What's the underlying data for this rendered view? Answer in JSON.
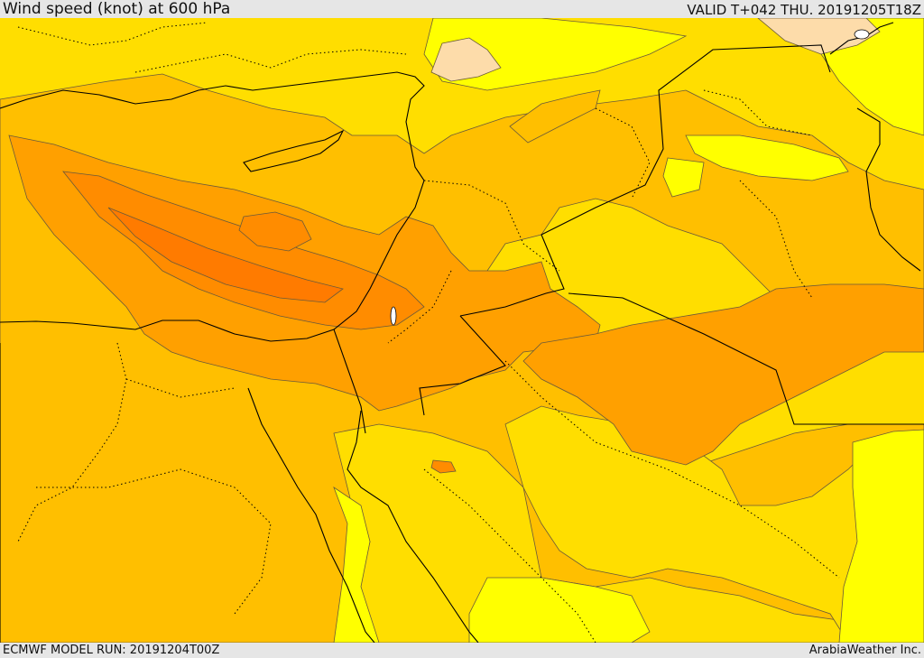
{
  "header": {
    "title": "Wind speed (knot) at 600 hPa",
    "valid": "VALID T+042 THU. 20191205T18Z"
  },
  "footer": {
    "model_run": "ECMWF MODEL RUN: 20191204T00Z",
    "brand": "ArabiaWeather Inc."
  },
  "map": {
    "region": "Eastern Mediterranean and Middle East",
    "field": "600 hPa wind speed",
    "shading_colors": {
      "lightest": "#ffff00",
      "light": "#ffde00",
      "medium": "#ffbf00",
      "strong": "#ffa000",
      "stronger": "#ff8c00",
      "strongest": "#ff7b00",
      "weak": "#fddcaa",
      "contour": "#6a5a3a",
      "borders": "#000000"
    }
  }
}
